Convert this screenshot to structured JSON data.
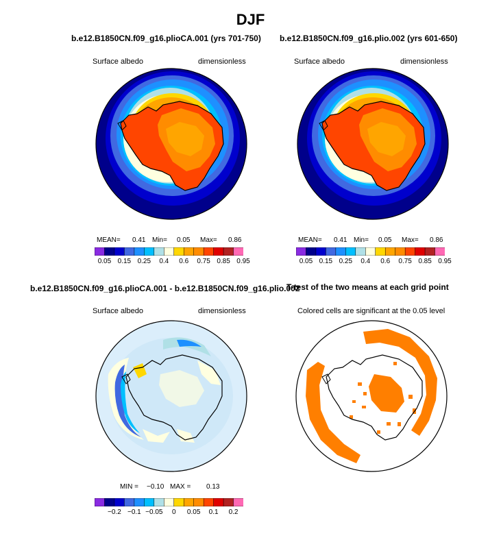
{
  "title": "DJF",
  "colors": {
    "scale": [
      "#8a2be2",
      "#00008b",
      "#0000cd",
      "#4169e1",
      "#1e90ff",
      "#00bfff",
      "#b0e0e6",
      "#ffffe0",
      "#ffd700",
      "#ffa500",
      "#ff8c00",
      "#ff4500",
      "#e00000",
      "#b22222",
      "#ff69b4"
    ],
    "sig": "#ff7f00"
  },
  "panels": [
    {
      "title": "b.e12.B1850CN.f09_g16.plioCA.001 (yrs 701-750)",
      "left_label": "Surface albedo",
      "right_label": "dimensionless",
      "stats": {
        "mean_label": "MEAN=",
        "mean": "0.41",
        "min_label": "Min=",
        "min": "0.05",
        "max_label": "Max=",
        "max": "0.86"
      },
      "colorbar_labels": [
        "0.05",
        "0.15",
        "0.25",
        "0.4",
        "0.6",
        "0.75",
        "0.85",
        "0.95"
      ]
    },
    {
      "title": "b.e12.B1850CN.f09_g16.plio.002 (yrs 601-650)",
      "left_label": "Surface albedo",
      "right_label": "dimensionless",
      "stats": {
        "mean_label": "MEAN=",
        "mean": "0.41",
        "min_label": "Min=",
        "min": "0.05",
        "max_label": "Max=",
        "max": "0.86"
      },
      "colorbar_labels": [
        "0.05",
        "0.15",
        "0.25",
        "0.4",
        "0.6",
        "0.75",
        "0.85",
        "0.95"
      ]
    },
    {
      "title": "b.e12.B1850CN.f09_g16.plioCA.001 - b.e12.B1850CN.f09_g16.plio.002",
      "left_label": "Surface albedo",
      "right_label": "dimensionless",
      "stats": {
        "min_label": "MIN =",
        "min": "−0.10",
        "max_label": "MAX =",
        "max": "0.13"
      },
      "colorbar_labels": [
        "−0.2",
        "−0.1",
        "−0.05",
        "0",
        "0.05",
        "0.1",
        "0.2"
      ]
    },
    {
      "title": "T-test of the two means at each grid point",
      "subtitle": "Colored cells are significant at the 0.05 level"
    }
  ]
}
